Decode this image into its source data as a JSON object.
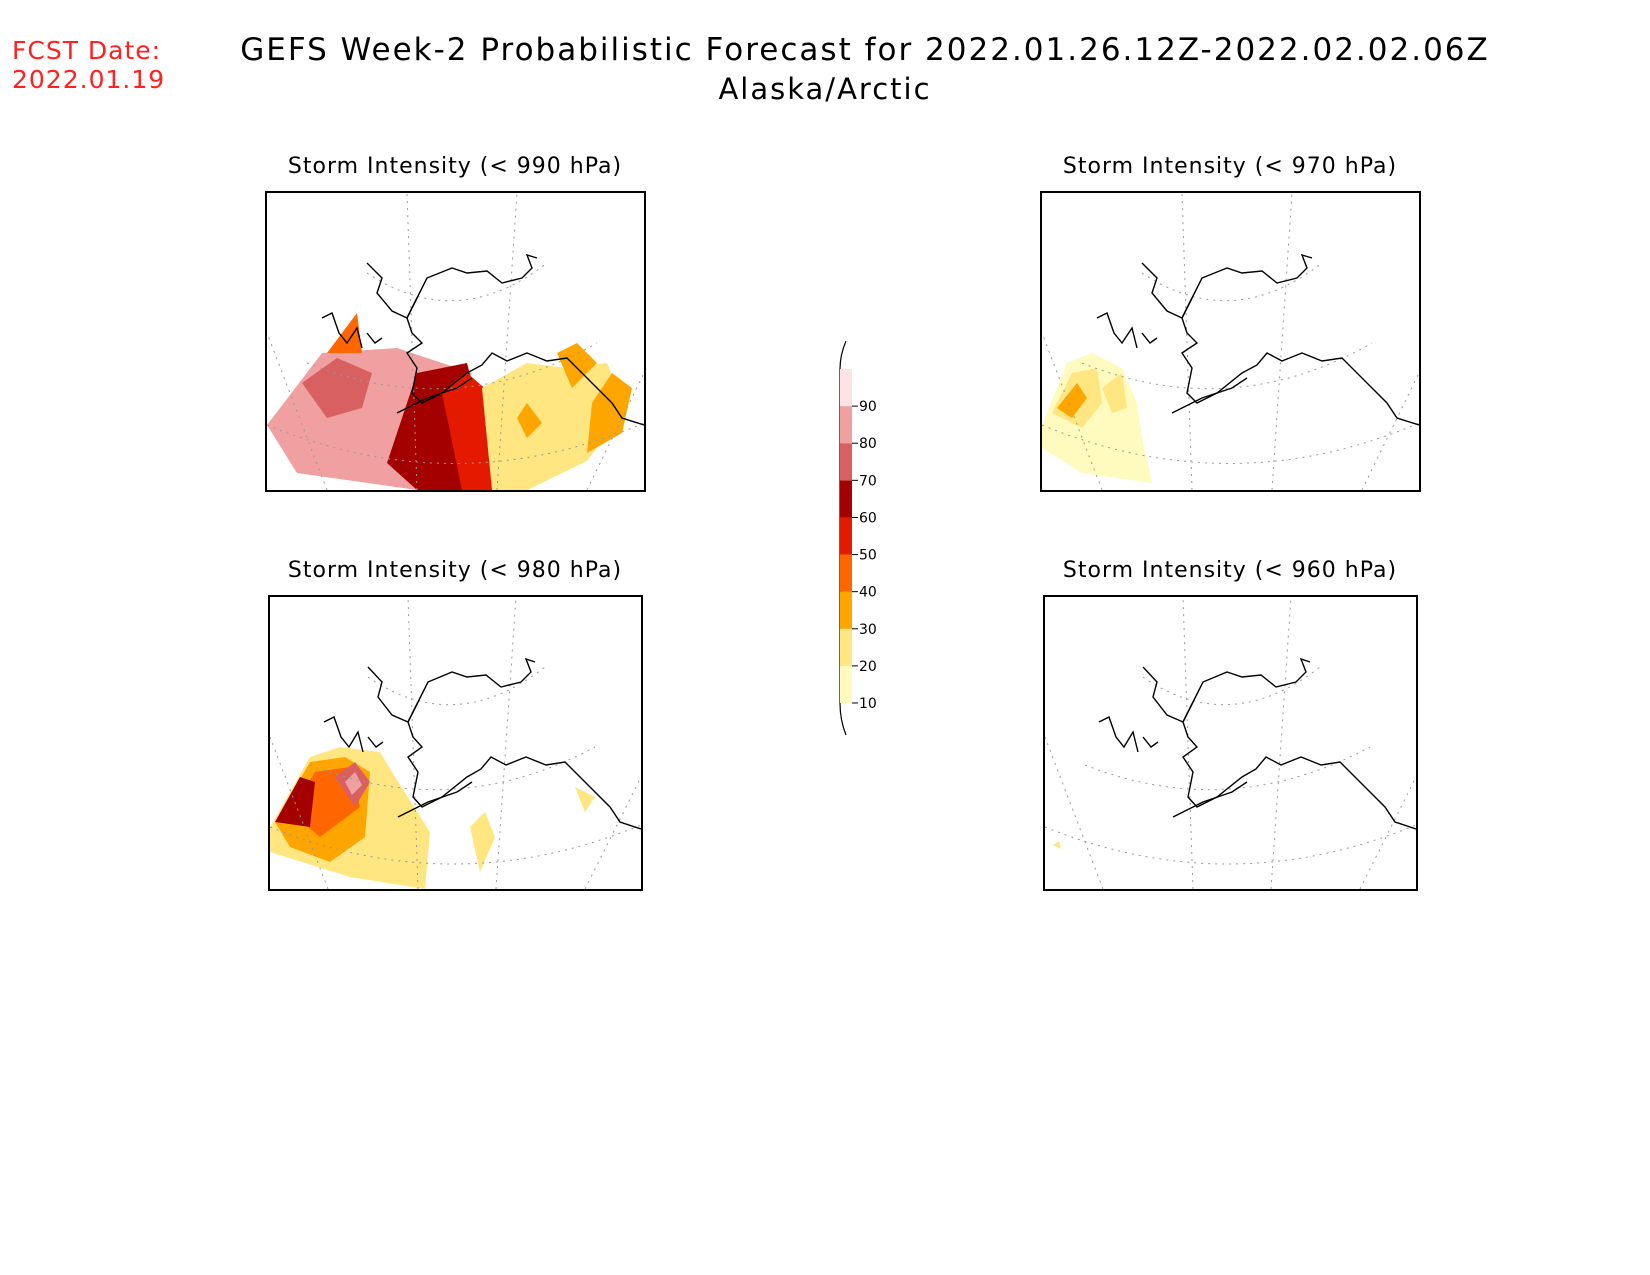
{
  "header": {
    "fcst_label": "FCST Date:",
    "fcst_date": "2022.01.19",
    "title": "GEFS Week-2 Probabilistic Forecast for 2022.01.26.12Z-2022.02.02.06Z",
    "subtitle": "Alaska/Arctic"
  },
  "panels": [
    {
      "id": "p990",
      "title": "Storm Intensity (< 990 hPa)"
    },
    {
      "id": "p970",
      "title": "Storm Intensity (< 970 hPa)"
    },
    {
      "id": "p980",
      "title": "Storm Intensity (< 980 hPa)"
    },
    {
      "id": "p960",
      "title": "Storm Intensity (< 960 hPa)"
    }
  ],
  "legend": {
    "levels": [
      "10",
      "20",
      "30",
      "40",
      "50",
      "60",
      "70",
      "80",
      "90"
    ],
    "colors": [
      "#fffbbf",
      "#ffe680",
      "#ffa500",
      "#ff6600",
      "#e31a00",
      "#a50000",
      "#d96060",
      "#f0a0a0",
      "#fde3e3"
    ]
  }
}
